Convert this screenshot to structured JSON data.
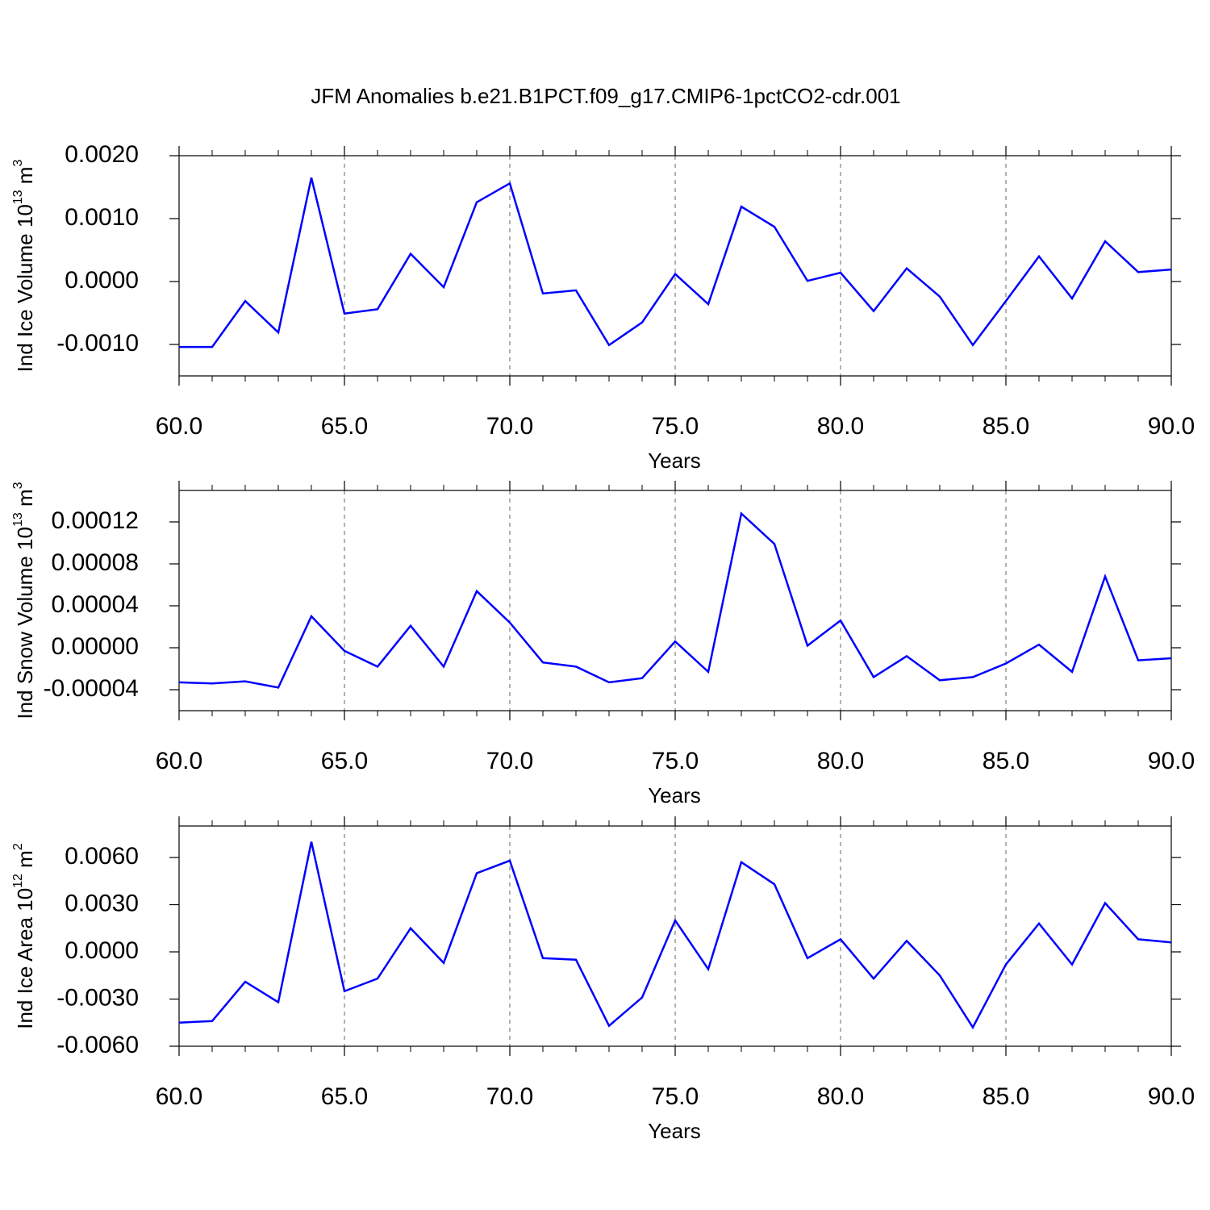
{
  "chart_data": [
    {
      "type": "line",
      "title": "JFM Anomalies b.e21.B1PCT.f09_g17.CMIP6-1pctCO2-cdr.001",
      "xlabel": "Years",
      "ylabel_parts": [
        {
          "text": "Ind Ice Volume 10"
        },
        {
          "sup": "13"
        },
        {
          "text": " m"
        },
        {
          "sup": "3"
        }
      ],
      "x": [
        60,
        61,
        62,
        63,
        64,
        65,
        66,
        67,
        68,
        69,
        70,
        71,
        72,
        73,
        74,
        75,
        76,
        77,
        78,
        79,
        80,
        81,
        82,
        83,
        84,
        85,
        86,
        87,
        88,
        89,
        90
      ],
      "series": [
        {
          "color": "#0000ff",
          "values": [
            -0.00104,
            -0.00104,
            -0.00031,
            -0.00081,
            0.00165,
            -0.00051,
            -0.00044,
            0.00044,
            -9e-05,
            0.00126,
            0.00156,
            -0.00019,
            -0.00014,
            -0.00101,
            -0.00065,
            0.00012,
            -0.00036,
            0.00119,
            0.00087,
            1e-05,
            0.00014,
            -0.00047,
            0.00021,
            -0.00024,
            -0.00101,
            -0.00031,
            0.0004,
            -0.00027,
            0.00064,
            0.00015,
            0.00019
          ]
        }
      ],
      "xlim": [
        60,
        90
      ],
      "xticks": [
        {
          "value": 60,
          "label": "60.0"
        },
        {
          "value": 65,
          "label": "65.0"
        },
        {
          "value": 70,
          "label": "70.0"
        },
        {
          "value": 75,
          "label": "75.0"
        },
        {
          "value": 80,
          "label": "80.0"
        },
        {
          "value": 85,
          "label": "85.0"
        },
        {
          "value": 90,
          "label": "90.0"
        }
      ],
      "ylim": [
        -0.0015,
        0.002
      ],
      "yticks": [
        {
          "value": -0.001,
          "label": "-0.0010"
        },
        {
          "value": 0,
          "label": "0.0000"
        },
        {
          "value": 0.001,
          "label": "0.0010"
        },
        {
          "value": 0.002,
          "label": "0.0020"
        }
      ],
      "grid": "x"
    },
    {
      "type": "line",
      "xlabel": "Years",
      "ylabel_parts": [
        {
          "text": "Ind Snow Volume 10"
        },
        {
          "sup": "13"
        },
        {
          "text": " m"
        },
        {
          "sup": "3"
        }
      ],
      "x": [
        60,
        61,
        62,
        63,
        64,
        65,
        66,
        67,
        68,
        69,
        70,
        71,
        72,
        73,
        74,
        75,
        76,
        77,
        78,
        79,
        80,
        81,
        82,
        83,
        84,
        85,
        86,
        87,
        88,
        89,
        90
      ],
      "series": [
        {
          "color": "#0000ff",
          "values": [
            -3.3e-05,
            -3.4e-05,
            -3.2e-05,
            -3.8e-05,
            3e-05,
            -3e-06,
            -1.8e-05,
            2.1e-05,
            -1.8e-05,
            5.4e-05,
            2.4e-05,
            -1.4e-05,
            -1.8e-05,
            -3.3e-05,
            -2.9e-05,
            6e-06,
            -2.3e-05,
            0.000128,
            9.9e-05,
            2e-06,
            2.6e-05,
            -2.8e-05,
            -8e-06,
            -3.1e-05,
            -2.8e-05,
            -1.5e-05,
            3e-06,
            -2.3e-05,
            6.8e-05,
            -1.2e-05,
            -1e-05
          ]
        }
      ],
      "xlim": [
        60,
        90
      ],
      "xticks": [
        {
          "value": 60,
          "label": "60.0"
        },
        {
          "value": 65,
          "label": "65.0"
        },
        {
          "value": 70,
          "label": "70.0"
        },
        {
          "value": 75,
          "label": "75.0"
        },
        {
          "value": 80,
          "label": "80.0"
        },
        {
          "value": 85,
          "label": "85.0"
        },
        {
          "value": 90,
          "label": "90.0"
        }
      ],
      "ylim": [
        -6e-05,
        0.00015
      ],
      "yticks": [
        {
          "value": -4e-05,
          "label": "-0.00004"
        },
        {
          "value": 0,
          "label": "0.00000"
        },
        {
          "value": 4e-05,
          "label": "0.00004"
        },
        {
          "value": 8e-05,
          "label": "0.00008"
        },
        {
          "value": 0.00012,
          "label": "0.00012"
        }
      ],
      "grid": "x"
    },
    {
      "type": "line",
      "xlabel": "Years",
      "ylabel_parts": [
        {
          "text": "Ind Ice Area 10"
        },
        {
          "sup": "12"
        },
        {
          "text": " m"
        },
        {
          "sup": "2"
        }
      ],
      "x": [
        60,
        61,
        62,
        63,
        64,
        65,
        66,
        67,
        68,
        69,
        70,
        71,
        72,
        73,
        74,
        75,
        76,
        77,
        78,
        79,
        80,
        81,
        82,
        83,
        84,
        85,
        86,
        87,
        88,
        89,
        90
      ],
      "series": [
        {
          "color": "#0000ff",
          "values": [
            -0.0045,
            -0.0044,
            -0.0019,
            -0.0032,
            0.007,
            -0.0025,
            -0.0017,
            0.0015,
            -0.0007,
            0.005,
            0.0058,
            -0.0004,
            -0.0005,
            -0.0047,
            -0.0029,
            0.002,
            -0.0011,
            0.0057,
            0.0043,
            -0.0004,
            0.0008,
            -0.0017,
            0.0007,
            -0.0015,
            -0.0048,
            -0.0008,
            0.0018,
            -0.0008,
            0.0031,
            0.0008,
            0.0006
          ]
        }
      ],
      "xlim": [
        60,
        90
      ],
      "xticks": [
        {
          "value": 60,
          "label": "60.0"
        },
        {
          "value": 65,
          "label": "65.0"
        },
        {
          "value": 70,
          "label": "70.0"
        },
        {
          "value": 75,
          "label": "75.0"
        },
        {
          "value": 80,
          "label": "80.0"
        },
        {
          "value": 85,
          "label": "85.0"
        },
        {
          "value": 90,
          "label": "90.0"
        }
      ],
      "ylim": [
        -0.006,
        0.008
      ],
      "yticks": [
        {
          "value": -0.006,
          "label": "-0.0060"
        },
        {
          "value": -0.003,
          "label": "-0.0030"
        },
        {
          "value": 0,
          "label": "0.0000"
        },
        {
          "value": 0.003,
          "label": "0.0030"
        },
        {
          "value": 0.006,
          "label": "0.0060"
        }
      ],
      "grid": "x"
    }
  ]
}
